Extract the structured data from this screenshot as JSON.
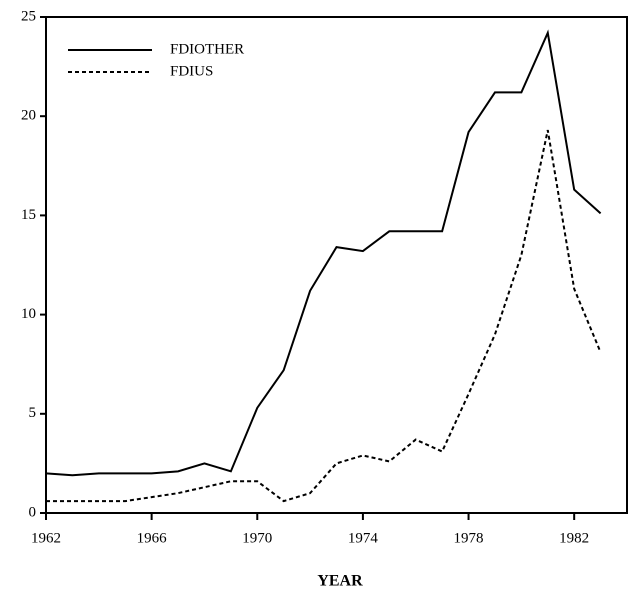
{
  "chart_data": {
    "type": "line",
    "x_label": "YEAR",
    "x": [
      1962,
      1963,
      1964,
      1965,
      1966,
      1967,
      1968,
      1969,
      1970,
      1971,
      1972,
      1973,
      1974,
      1975,
      1976,
      1977,
      1978,
      1979,
      1980,
      1981,
      1982,
      1983
    ],
    "series": [
      {
        "name": "FDIOTHER",
        "color": "#000000",
        "style": "solid",
        "values": [
          2.0,
          1.9,
          2.0,
          2.0,
          2.0,
          2.1,
          2.5,
          2.1,
          5.3,
          7.2,
          11.2,
          13.4,
          13.2,
          14.2,
          14.2,
          14.2,
          19.2,
          21.2,
          21.2,
          24.2,
          16.3,
          15.1
        ]
      },
      {
        "name": "FDIUS",
        "color": "#000000",
        "style": "dotted",
        "values": [
          0.6,
          0.6,
          0.6,
          0.6,
          0.8,
          1.0,
          1.3,
          1.6,
          1.6,
          0.6,
          1.0,
          2.5,
          2.9,
          2.6,
          3.7,
          3.1,
          6.0,
          9.0,
          13.0,
          19.3,
          11.3,
          8.1
        ]
      }
    ],
    "xlim": [
      1962,
      1984
    ],
    "xticks": [
      1962,
      1966,
      1970,
      1974,
      1978,
      1982
    ],
    "ylim": [
      0,
      25
    ],
    "yticks": [
      0,
      5,
      10,
      15,
      20,
      25
    ],
    "legend": "upper left"
  }
}
